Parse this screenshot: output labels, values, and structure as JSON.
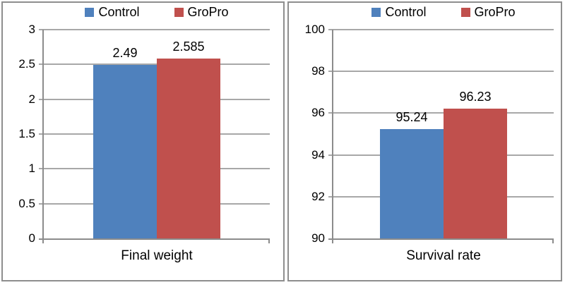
{
  "page": {
    "background": "#FFFFFF",
    "panel_border_color": "#8E8E8E"
  },
  "colors": {
    "control_series": "#4F81BD",
    "gropro_series": "#C0504D",
    "gridline": "#A8A8A8",
    "axis": "#8C8C8C",
    "text": "#000000"
  },
  "chart_data": [
    {
      "type": "bar",
      "title": "",
      "categories": [
        "Final weight"
      ],
      "xlabel": "Final weight",
      "ylabel": "",
      "series": [
        {
          "name": "Control",
          "values": [
            2.49
          ],
          "color": "#4F81BD"
        },
        {
          "name": "GroPro",
          "values": [
            2.585
          ],
          "color": "#C0504D"
        }
      ],
      "data_labels": [
        "2.49",
        "2.585"
      ],
      "ylim": [
        0,
        3
      ],
      "yticks": [
        "3",
        "2.5",
        "2",
        "1.5",
        "1",
        "0.5",
        "0"
      ],
      "grid": true,
      "legend_position": "top"
    },
    {
      "type": "bar",
      "title": "",
      "categories": [
        "Survival rate"
      ],
      "xlabel": "Survival rate",
      "ylabel": "",
      "series": [
        {
          "name": "Control",
          "values": [
            95.24
          ],
          "color": "#4F81BD"
        },
        {
          "name": "GroPro",
          "values": [
            96.23
          ],
          "color": "#C0504D"
        }
      ],
      "data_labels": [
        "95.24",
        "96.23"
      ],
      "ylim": [
        90,
        100
      ],
      "yticks": [
        "100",
        "98",
        "96",
        "94",
        "92",
        "90"
      ],
      "grid": true,
      "legend_position": "top"
    }
  ]
}
